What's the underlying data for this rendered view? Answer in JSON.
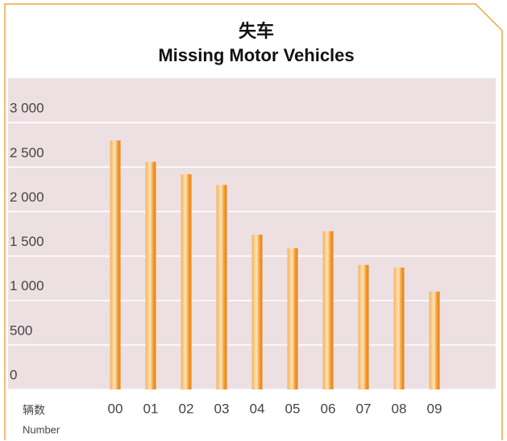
{
  "chart_data": {
    "type": "bar",
    "title_zh": "失车",
    "title": "Missing Motor Vehicles",
    "y_label_zh": "辆数",
    "y_label": "Number",
    "categories": [
      "00",
      "01",
      "02",
      "03",
      "04",
      "05",
      "06",
      "07",
      "08",
      "09"
    ],
    "values": [
      2800,
      2560,
      2420,
      2300,
      1740,
      1590,
      1780,
      1400,
      1370,
      1100
    ],
    "color": "#f08a1a",
    "ylim": [
      0,
      3500
    ],
    "yticks": [
      0,
      500,
      {
        "value": 1000,
        "label": "1 000"
      },
      {
        "value": 1500,
        "label": "1 500"
      },
      {
        "value": 2000,
        "label": "2 000"
      },
      {
        "value": 2500,
        "label": "2 500"
      },
      {
        "value": 3000,
        "label": "3 000"
      }
    ],
    "grid": true
  }
}
